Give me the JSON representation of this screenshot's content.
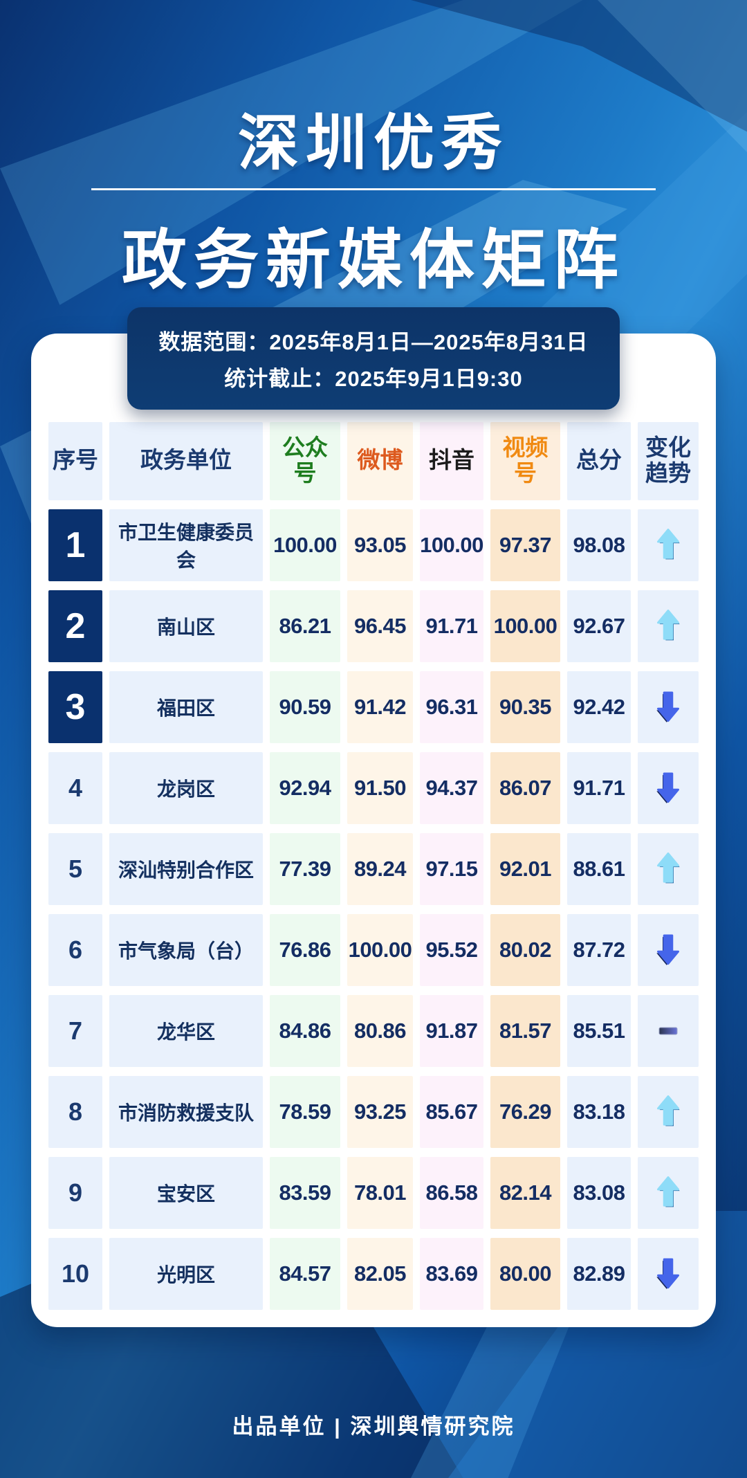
{
  "poster": {
    "title_line1": "深圳优秀",
    "title_line2": "政务新媒体矩阵",
    "date_range_line1": "数据范围：2025年8月1日—2025年8月31日",
    "date_range_line2": "统计截止：2025年9月1日9:30",
    "footer": "出品单位 | 深圳舆情研究院"
  },
  "table": {
    "headers": [
      "序号",
      "政务单位",
      "公众号",
      "微博",
      "抖音",
      "视频号",
      "总分",
      "变化趋势"
    ]
  },
  "chart_data": {
    "type": "table",
    "title": "深圳优秀政务新媒体矩阵",
    "columns": [
      "序号",
      "政务单位",
      "公众号",
      "微博",
      "抖音",
      "视频号",
      "总分",
      "变化趋势"
    ],
    "rows": [
      {
        "rank": "1",
        "name": "市卫生健康委员会",
        "gongzhonghao": "100.00",
        "weibo": "93.05",
        "douyin": "100.00",
        "shipinhao": "97.37",
        "total": "98.08",
        "trend": "up"
      },
      {
        "rank": "2",
        "name": "南山区",
        "gongzhonghao": "86.21",
        "weibo": "96.45",
        "douyin": "91.71",
        "shipinhao": "100.00",
        "total": "92.67",
        "trend": "up"
      },
      {
        "rank": "3",
        "name": "福田区",
        "gongzhonghao": "90.59",
        "weibo": "91.42",
        "douyin": "96.31",
        "shipinhao": "90.35",
        "total": "92.42",
        "trend": "down"
      },
      {
        "rank": "4",
        "name": "龙岗区",
        "gongzhonghao": "92.94",
        "weibo": "91.50",
        "douyin": "94.37",
        "shipinhao": "86.07",
        "total": "91.71",
        "trend": "down"
      },
      {
        "rank": "5",
        "name": "深汕特别合作区",
        "gongzhonghao": "77.39",
        "weibo": "89.24",
        "douyin": "97.15",
        "shipinhao": "92.01",
        "total": "88.61",
        "trend": "up"
      },
      {
        "rank": "6",
        "name": "市气象局（台）",
        "gongzhonghao": "76.86",
        "weibo": "100.00",
        "douyin": "95.52",
        "shipinhao": "80.02",
        "total": "87.72",
        "trend": "down"
      },
      {
        "rank": "7",
        "name": "龙华区",
        "gongzhonghao": "84.86",
        "weibo": "80.86",
        "douyin": "91.87",
        "shipinhao": "81.57",
        "total": "85.51",
        "trend": "flat"
      },
      {
        "rank": "8",
        "name": "市消防救援支队",
        "gongzhonghao": "78.59",
        "weibo": "93.25",
        "douyin": "85.67",
        "shipinhao": "76.29",
        "total": "83.18",
        "trend": "up"
      },
      {
        "rank": "9",
        "name": "宝安区",
        "gongzhonghao": "83.59",
        "weibo": "78.01",
        "douyin": "86.58",
        "shipinhao": "82.14",
        "total": "83.08",
        "trend": "up"
      },
      {
        "rank": "10",
        "name": "光明区",
        "gongzhonghao": "84.57",
        "weibo": "82.05",
        "douyin": "83.69",
        "shipinhao": "80.00",
        "total": "82.89",
        "trend": "down"
      }
    ]
  },
  "colors": {
    "background_blue": "#1e7cc9",
    "date_box_navy": "#0e3a70",
    "rank_top_navy": "#0a316e",
    "col_blue_bg": "#e9f1fc",
    "col_green_bg": "#edfaf0",
    "col_cream_bg": "#fef5e8",
    "col_pink_bg": "#fdf2fb",
    "col_peach_bg": "#fbe7cd",
    "header_green_text": "#1e7d1f",
    "header_orange_red_text": "#dd5a1e",
    "header_black_text": "#1c1c1c",
    "header_orange_text": "#f08a12",
    "body_text_navy": "#142d63",
    "trend_up_blue": "#8edcf8",
    "trend_down_blue": "#4565ea"
  }
}
